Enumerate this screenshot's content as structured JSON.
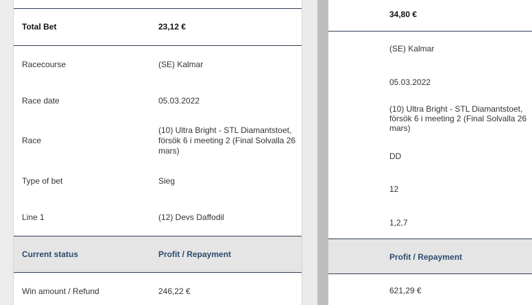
{
  "left_panel": {
    "total_bet": {
      "label": "Total Bet",
      "value": "23,12 €"
    },
    "rows": [
      {
        "label": "Racecourse",
        "value": "(SE) Kalmar"
      },
      {
        "label": "Race date",
        "value": "05.03.2022"
      },
      {
        "label": "Race",
        "value": "(10) Ultra Bright - STL Diamantstoet, försök 6 i meeting 2 (Final Solvalla 26 mars)"
      },
      {
        "label": "Type of bet",
        "value": "Sieg"
      },
      {
        "label": "Line 1",
        "value": "(12) Devs Daffodil"
      }
    ],
    "status": {
      "label": "Current status",
      "value": "Profit / Repayment"
    },
    "win": {
      "label": "Win amount / Refund",
      "value": "246,22 €"
    }
  },
  "right_panel": {
    "total_bet_value": "34,80 €",
    "rows": [
      "(SE) Kalmar",
      "05.03.2022",
      "(10) Ultra Bright - STL Diamantstoet, försök 6 i meeting 2 (Final Solvalla 26 mars)",
      "DD",
      "12",
      "1,2,7"
    ],
    "status_value": "Profit / Repayment",
    "win_value": "621,29 €"
  }
}
